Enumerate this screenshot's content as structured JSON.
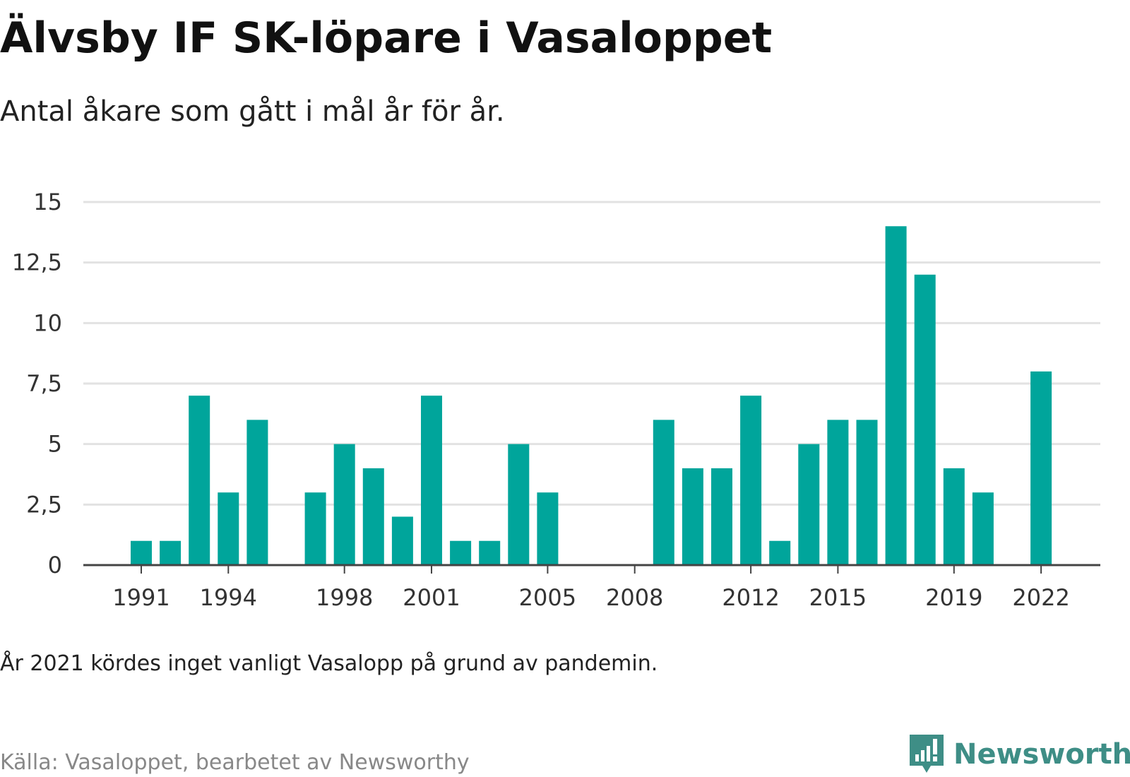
{
  "title": "Älvsby IF SK-löpare i Vasaloppet",
  "subtitle": "Antal åkare som gått i mål år för år.",
  "note": "År 2021 kördes inget vanligt Vasalopp på grund av pandemin.",
  "source": "Källa: Vasaloppet, bearbetet av Newsworthy",
  "brand": {
    "name": "Newsworthy",
    "icon": "chat-bubble-bar-chart-icon",
    "color": "#3e8e86"
  },
  "colors": {
    "bar": "#00a59b",
    "grid": "#e2e2e2",
    "axis": "#444444",
    "text": "#333333"
  },
  "chart_data": {
    "type": "bar",
    "title": "",
    "xlabel": "",
    "ylabel": "",
    "ylim": [
      0,
      15
    ],
    "yticks": [
      0,
      2.5,
      5,
      7.5,
      10,
      12.5,
      15
    ],
    "ytick_labels": [
      "0",
      "2,5",
      "5",
      "7,5",
      "10",
      "12,5",
      "15"
    ],
    "xticks": [
      1991,
      1994,
      1998,
      2001,
      2005,
      2008,
      2012,
      2015,
      2019,
      2022
    ],
    "xtick_labels": [
      "1991",
      "1994",
      "1998",
      "2001",
      "2005",
      "2008",
      "2012",
      "2015",
      "2019",
      "2022"
    ],
    "grid": true,
    "legend": "none",
    "categories": [
      1991,
      1992,
      1993,
      1994,
      1995,
      1996,
      1997,
      1998,
      1999,
      2000,
      2001,
      2002,
      2003,
      2004,
      2005,
      2006,
      2007,
      2008,
      2009,
      2010,
      2011,
      2012,
      2013,
      2014,
      2015,
      2016,
      2017,
      2018,
      2019,
      2020,
      2021,
      2022
    ],
    "values": [
      1,
      1,
      7,
      3,
      6,
      0,
      3,
      5,
      4,
      2,
      7,
      1,
      1,
      5,
      3,
      0,
      0,
      0,
      6,
      4,
      4,
      7,
      1,
      5,
      6,
      6,
      14,
      12,
      4,
      3,
      0,
      8
    ]
  }
}
